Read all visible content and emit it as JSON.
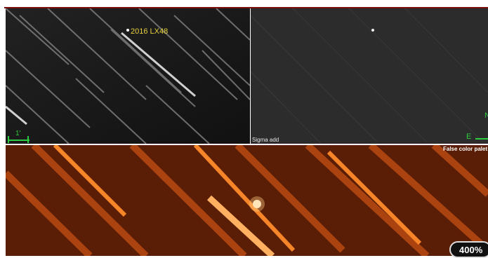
{
  "panels": {
    "left": {
      "object_label": "2016 LX48",
      "scale_label": "1'"
    },
    "right": {
      "caption": "Sigma add"
    },
    "bottom": {
      "caption": "False color palet"
    }
  },
  "compass": {
    "east": "E",
    "north": "N"
  },
  "zoom": {
    "level": "400%"
  },
  "colors": {
    "label_yellow": "#e6d23a",
    "overlay_green": "#2ecc40",
    "false_color_base": "#5a1d06",
    "streak_orange": "#ff8a2a"
  }
}
